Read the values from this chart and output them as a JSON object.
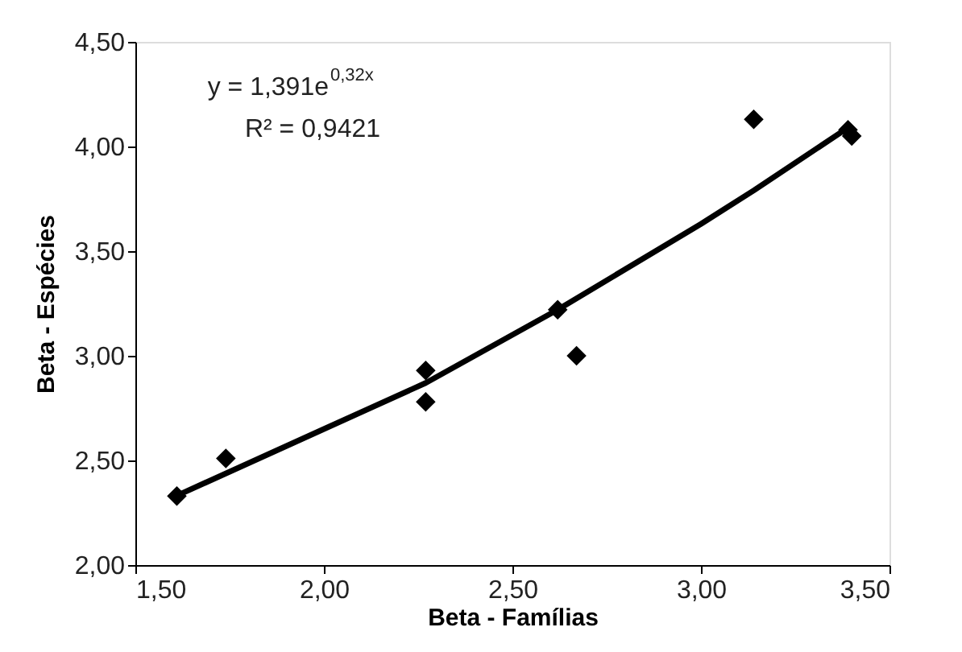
{
  "chart_data": {
    "type": "scatter",
    "xlabel": "Beta - Famílias",
    "ylabel": "Beta - Espécies",
    "annotations": [
      "y = 1,391e$^{0,32x}$",
      "R² = 0,9421"
    ],
    "xlim": [
      1.5,
      3.5
    ],
    "ylim": [
      2.0,
      4.5
    ],
    "xticks": [
      {
        "value": 1.5,
        "label": "1,50"
      },
      {
        "value": 2.0,
        "label": "2,00"
      },
      {
        "value": 2.5,
        "label": "2,50"
      },
      {
        "value": 3.0,
        "label": "3,00"
      },
      {
        "value": 3.5,
        "label": "3,50"
      }
    ],
    "yticks": [
      {
        "value": 2.0,
        "label": "2,00"
      },
      {
        "value": 2.5,
        "label": "2,50"
      },
      {
        "value": 3.0,
        "label": "3,00"
      },
      {
        "value": 3.5,
        "label": "3,50"
      },
      {
        "value": 4.0,
        "label": "4,00"
      },
      {
        "value": 4.5,
        "label": "4,50"
      }
    ],
    "series": [
      {
        "marker": "diamond",
        "color": "#000000",
        "x": [
          1.61,
          1.74,
          2.27,
          2.27,
          2.62,
          2.67,
          3.14,
          3.39,
          3.4
        ],
        "values": [
          2.33,
          2.51,
          2.93,
          2.78,
          3.22,
          3.0,
          4.13,
          4.08,
          4.05
        ]
      },
      {
        "type": "line",
        "line_style": "solid",
        "color": "#000000",
        "x": [
          1.62,
          2.0,
          2.27,
          2.62,
          3.0,
          3.14,
          3.39
        ],
        "values": [
          2.34,
          2.65,
          2.87,
          3.22,
          3.63,
          3.79,
          4.09
        ]
      }
    ]
  }
}
